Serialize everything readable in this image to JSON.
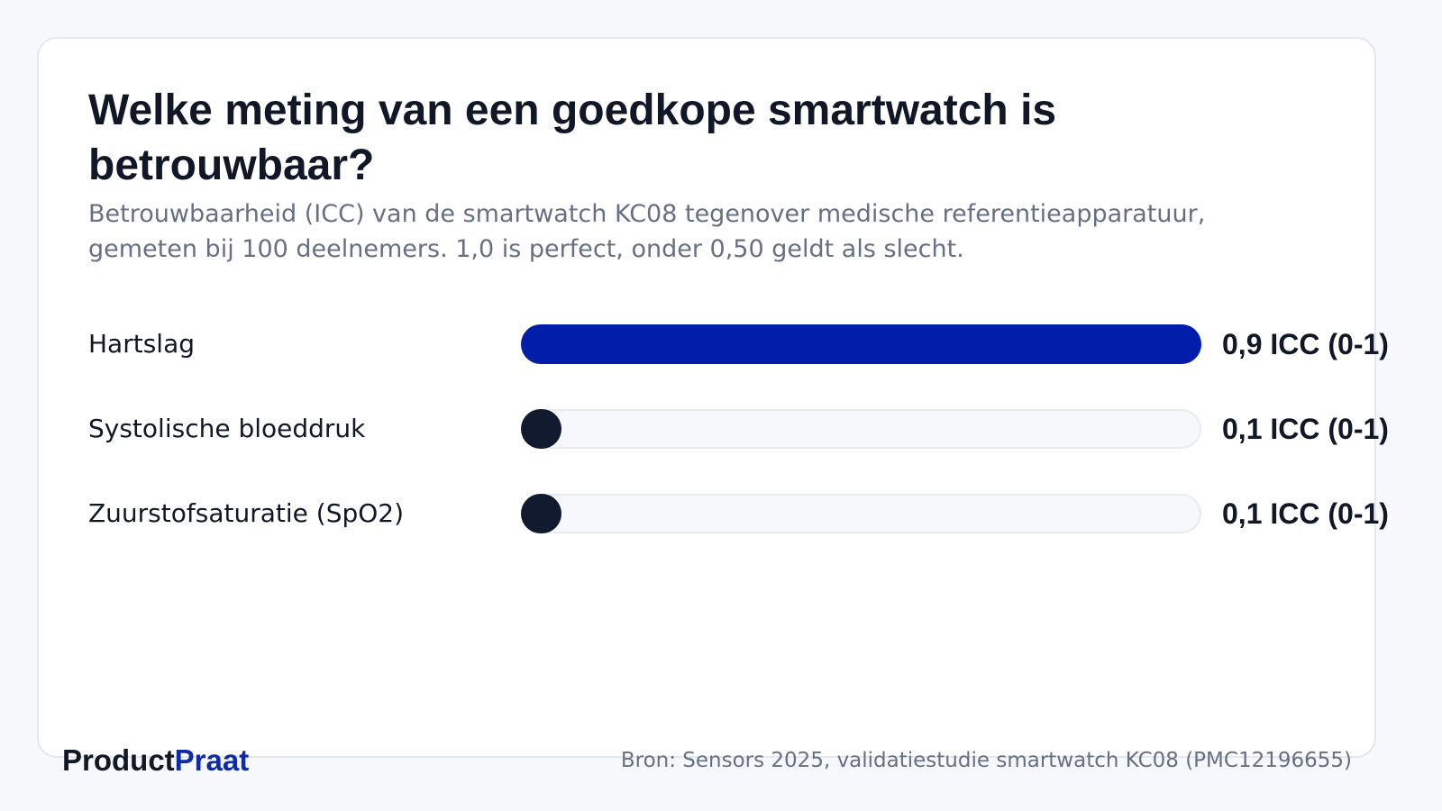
{
  "header": {
    "title": "Welke meting van een goedkope smartwatch is betrouwbaar?",
    "subtitle": "Betrouwbaarheid (ICC) van de smartwatch KC08 tegenover medische referentieapparatuur, gemeten bij 100 deelnemers. 1,0 is perfect, onder 0,50 geldt als slecht."
  },
  "chart_data": {
    "type": "bar",
    "orientation": "horizontal",
    "categories": [
      "Hartslag",
      "Systolische bloeddruk",
      "Zuurstofsaturatie (SpO2)"
    ],
    "values": [
      0.9,
      0.1,
      0.1
    ],
    "value_labels": [
      "0,9 ICC (0-1)",
      "0,1 ICC (0-1)",
      "0,1 ICC (0-1)"
    ],
    "colors": [
      "#001eaa",
      "#111a2e",
      "#111a2e"
    ],
    "track_color": "#f6f8fb",
    "grid": false
  },
  "footer": {
    "brand_part1": "Product",
    "brand_part2": "Praat",
    "source": "Bron: Sensors 2025, validatiestudie smartwatch KC08 (PMC12196655)"
  }
}
